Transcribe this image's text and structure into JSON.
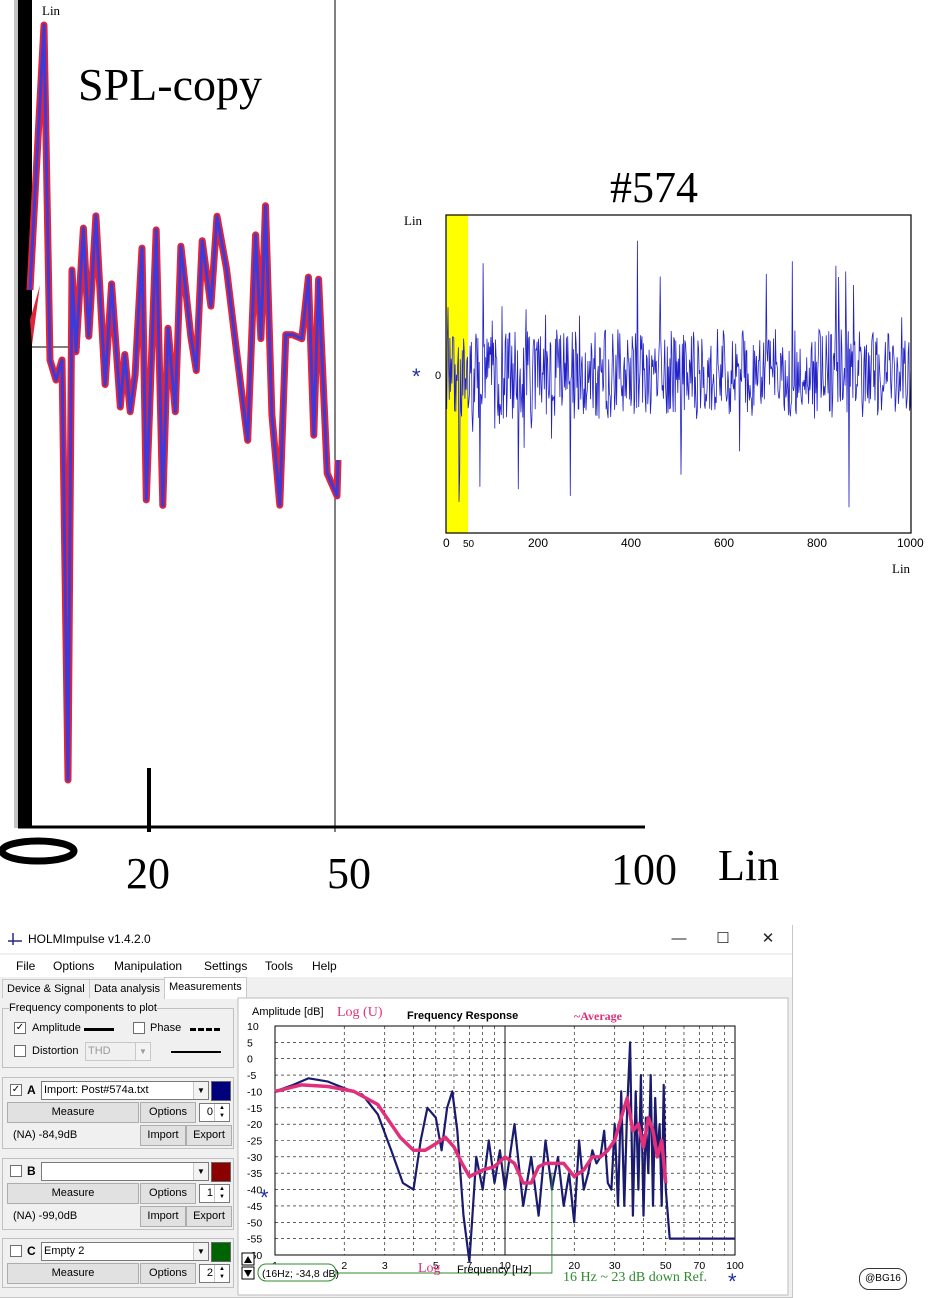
{
  "spl_chart": {
    "title": "SPL-copy",
    "y_unit": "Lin",
    "x_unit": "Lin",
    "x_ticks": [
      "0",
      "20",
      "50",
      "100"
    ],
    "colors": {
      "trace_outer": "#e0253a",
      "trace_inner": "#3b3bdc",
      "axis": "#000000"
    }
  },
  "impulse_chart": {
    "title": "#574",
    "y_unit": "Lin",
    "x_unit": "Lin",
    "y_zero_label": "0",
    "marker": "*",
    "x_ticks": [
      "0",
      "50",
      "200",
      "400",
      "600",
      "800",
      "1000"
    ],
    "highlight_range": [
      0,
      50
    ],
    "colors": {
      "trace": "#2222c8",
      "highlight": "#ffff00"
    }
  },
  "app": {
    "title": "HOLMImpulse  v1.4.2.0",
    "window_controls": {
      "minimize": "—",
      "maximize": "☐",
      "close": "✕"
    },
    "menu": [
      "File",
      "Options",
      "Manipulation",
      "Settings",
      "Tools",
      "Help"
    ],
    "tabs": [
      "Device & Signal",
      "Data analysis",
      "Measurements"
    ],
    "active_tab": "Measurements",
    "freq_components": {
      "title": "Frequency components to plot",
      "amplitude": {
        "label": "Amplitude",
        "checked": true
      },
      "phase": {
        "label": "Phase",
        "checked": false
      },
      "distortion": {
        "label": "Distortion",
        "checked": false,
        "mode": "THD"
      }
    },
    "channels": [
      {
        "letter": "A",
        "checked": true,
        "file": "Import: Post#574a.txt",
        "color": "#00007a",
        "measure": "Measure",
        "options": "Options",
        "spin": "0",
        "level": "(NA) -84,9dB",
        "import": "Import",
        "export": "Export"
      },
      {
        "letter": "B",
        "checked": false,
        "file": "",
        "color": "#8b0000",
        "measure": "Measure",
        "options": "Options",
        "spin": "1",
        "level": "(NA) -99,0dB",
        "import": "Import",
        "export": "Export"
      },
      {
        "letter": "C",
        "checked": false,
        "file": "Empty 2",
        "color": "#006400",
        "measure": "Measure",
        "options": "Options",
        "spin": "2"
      }
    ],
    "fr_chart": {
      "title": "Frequency Response",
      "y_label": "Amplitude [dB]",
      "x_label": "Frequency [Hz]",
      "y_scale_note": "Log (U)",
      "x_scale_note": "Log",
      "average_label": "~Average",
      "cursor_readout": "(16Hz; -34,8 dB)",
      "annotation": "16 Hz ~ 23 dB down Ref.",
      "marker": "*",
      "y_ticks": [
        10,
        5,
        0,
        -5,
        -10,
        -15,
        -20,
        -25,
        -30,
        -35,
        -40,
        -45,
        -50,
        -55,
        -60
      ],
      "x_ticks": [
        1,
        2,
        3,
        5,
        7,
        10,
        20,
        30,
        50,
        70,
        100
      ],
      "ylim": [
        -60,
        10
      ],
      "xlim": [
        1,
        100
      ],
      "cursor_x": 16,
      "colors": {
        "response": "#1a1a6e",
        "average": "#e0307a",
        "annotation": "#2e8b2e",
        "grid": "#000000"
      }
    },
    "watermark": "@BG16"
  },
  "chart_data": {
    "type": "line",
    "title": "Frequency Response",
    "xlabel": "Frequency [Hz]",
    "ylabel": "Amplitude [dB]",
    "x_scale": "log",
    "xlim": [
      1,
      100
    ],
    "ylim": [
      -60,
      10
    ],
    "series": [
      {
        "name": "A",
        "x": [
          1,
          1.2,
          1.4,
          1.7,
          2,
          2.4,
          2.8,
          3.2,
          3.6,
          4,
          4.3,
          4.6,
          5,
          5.3,
          5.6,
          5.9,
          6.2,
          6.6,
          7,
          7.5,
          8,
          8.5,
          9,
          9.5,
          10,
          11,
          12,
          13,
          14,
          15,
          16,
          17,
          18,
          19,
          20,
          21,
          22,
          23,
          24,
          25,
          26,
          27,
          28,
          29,
          30,
          31,
          32,
          33,
          34,
          35,
          36,
          37,
          38,
          39,
          40,
          41,
          42,
          43,
          44,
          45,
          46,
          47,
          48,
          49,
          50,
          52,
          60,
          80,
          100
        ],
        "y": [
          -10,
          -8,
          -6,
          -7,
          -9,
          -11,
          -17,
          -28,
          -38,
          -40,
          -25,
          -15,
          -18,
          -28,
          -15,
          -10,
          -22,
          -48,
          -62,
          -30,
          -40,
          -25,
          -38,
          -28,
          -40,
          -20,
          -45,
          -30,
          -48,
          -25,
          -40,
          -30,
          -45,
          -35,
          -50,
          -25,
          -40,
          -35,
          -28,
          -32,
          -30,
          -22,
          -38,
          -40,
          -20,
          -45,
          -10,
          -45,
          -15,
          5,
          -48,
          -10,
          -40,
          -5,
          -48,
          -18,
          -35,
          -5,
          -45,
          -12,
          -30,
          -20,
          -45,
          -8,
          -40,
          -55,
          -55,
          -55,
          -55
        ]
      },
      {
        "name": "~Average",
        "x": [
          1,
          1.3,
          1.7,
          2.2,
          2.8,
          3.5,
          4,
          4.5,
          5,
          5.5,
          6,
          6.5,
          7,
          8,
          9,
          10,
          11,
          12,
          13,
          14,
          15,
          16,
          18,
          20,
          22,
          24,
          26,
          28,
          30,
          32,
          34,
          36,
          38,
          40,
          42,
          44,
          46,
          48,
          50
        ],
        "y": [
          -10,
          -8,
          -8.5,
          -10,
          -14,
          -24,
          -28,
          -28,
          -26,
          -24,
          -27,
          -32,
          -36,
          -34,
          -33,
          -30,
          -32,
          -38,
          -38,
          -33,
          -32,
          -32,
          -32,
          -36,
          -34,
          -30,
          -30,
          -28,
          -25,
          -18,
          -12,
          -22,
          -20,
          -27,
          -18,
          -22,
          -30,
          -25,
          -38
        ]
      }
    ]
  }
}
